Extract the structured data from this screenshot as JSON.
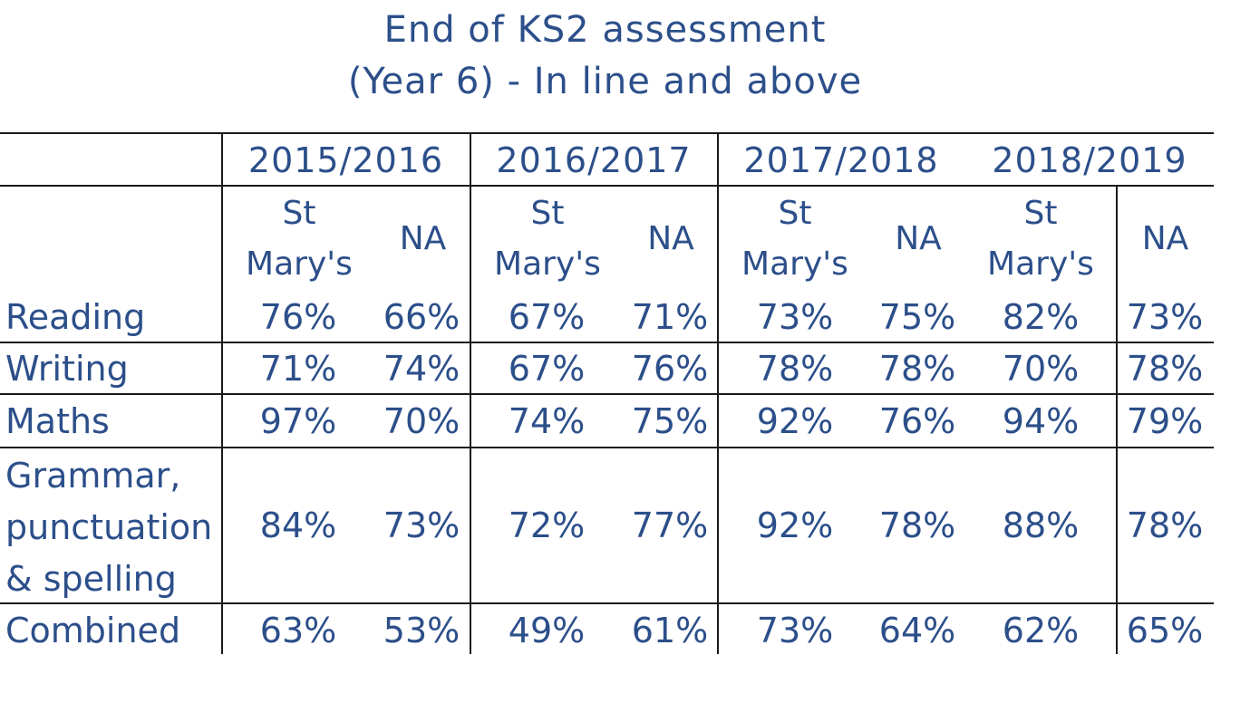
{
  "title_line1": "End of KS2 assessment",
  "title_line2": "(Year 6) - In line and above",
  "years": [
    "2015/2016",
    "2016/2017",
    "2017/2018",
    "2018/2019"
  ],
  "col_school_line1": "St",
  "col_school_line2": "Mary's",
  "col_na": "NA",
  "rows": [
    {
      "label": "Reading",
      "values": [
        "76%",
        "66%",
        "67%",
        "71%",
        "73%",
        "75%",
        "82%",
        "73%"
      ]
    },
    {
      "label": "Writing",
      "values": [
        "71%",
        "74%",
        "67%",
        "76%",
        "78%",
        "78%",
        "70%",
        "78%"
      ]
    },
    {
      "label": "Maths",
      "values": [
        "97%",
        "70%",
        "74%",
        "75%",
        "92%",
        "76%",
        "94%",
        "79%"
      ]
    },
    {
      "label_lines": [
        "Grammar,",
        "punctuation",
        "& spelling"
      ],
      "values": [
        "84%",
        "73%",
        "72%",
        "77%",
        "92%",
        "78%",
        "88%",
        "78%"
      ]
    },
    {
      "label": "Combined",
      "values": [
        "63%",
        "53%",
        "49%",
        "61%",
        "73%",
        "64%",
        "62%",
        "65%"
      ]
    }
  ]
}
